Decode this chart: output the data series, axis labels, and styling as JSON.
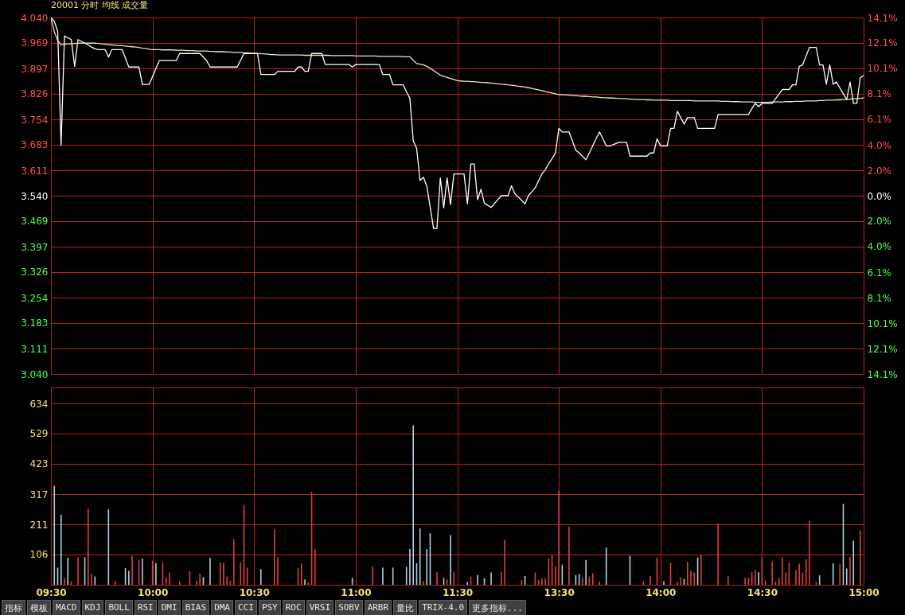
{
  "chart_data": [
    {
      "type": "line",
      "title": "20001 分时 均线 成交量",
      "grid": true,
      "categories": [
        null,
        null,
        null,
        null,
        null,
        null,
        null,
        null,
        null,
        null,
        null,
        null,
        null,
        null,
        null,
        null,
        null,
        null,
        null,
        null,
        null,
        null,
        null,
        null,
        null,
        null,
        null,
        null,
        null,
        null,
        null,
        null,
        null,
        null,
        null,
        null,
        null,
        null,
        null,
        null,
        null,
        null,
        null,
        null,
        null,
        null,
        null,
        null,
        null,
        null,
        null,
        null,
        null,
        null,
        null,
        null,
        null,
        null,
        null,
        null,
        null,
        null,
        null,
        null,
        null,
        null,
        null,
        null,
        null,
        null,
        null,
        null,
        null,
        null,
        null,
        null,
        null,
        null,
        null,
        null,
        null,
        null,
        null,
        null,
        null,
        null,
        null,
        null,
        null,
        null,
        null,
        null,
        null,
        null,
        null,
        null,
        null,
        null,
        null,
        null,
        null,
        null,
        null,
        null,
        null,
        null,
        null,
        null,
        null,
        null,
        null,
        null,
        null,
        null,
        null,
        null,
        null,
        null,
        null,
        null,
        null,
        null,
        null,
        null,
        null,
        null,
        null,
        null,
        null,
        null,
        null,
        null,
        null,
        null,
        null,
        null,
        null,
        null,
        null,
        null,
        null,
        null,
        null,
        null,
        null,
        null,
        null,
        null,
        null,
        null,
        null,
        null,
        null,
        null,
        null,
        null,
        null,
        null,
        null,
        null,
        null,
        null,
        null,
        null,
        null,
        null,
        null,
        null,
        null,
        null,
        null,
        null,
        null,
        null,
        null,
        null,
        null,
        null,
        null,
        null,
        null,
        null,
        null,
        null,
        null,
        null,
        null,
        null,
        null,
        null,
        null,
        null,
        null,
        null,
        null,
        null,
        null,
        null,
        null,
        null,
        null,
        null,
        null,
        null,
        null,
        null,
        null,
        null,
        null,
        null,
        null,
        null,
        null,
        null,
        null,
        null,
        null,
        null,
        null,
        null,
        null,
        null,
        null,
        null,
        null,
        null,
        null,
        null,
        null,
        null,
        null,
        null,
        null,
        null,
        null,
        null,
        null,
        null,
        null,
        null,
        null
      ],
      "ylim": [
        3.04,
        4.04
      ],
      "yticks": [
        {
          "value": 3.04,
          "label": "3.040"
        },
        3.111,
        3.183,
        3.254,
        3.326,
        3.397,
        3.469,
        {
          "value": 3.54,
          "label": "3.540"
        },
        3.611,
        3.683,
        3.754,
        3.826,
        3.897,
        3.969,
        {
          "value": 4.04,
          "label": "4.040"
        }
      ],
      "y2lim": [
        -14.1,
        14.1
      ],
      "y2ticks": [
        {
          "value": -14.1,
          "label": "14.1%"
        },
        {
          "value": -12.1,
          "label": "12.1%"
        },
        {
          "value": -10.1,
          "label": "10.1%"
        },
        {
          "value": -8.1,
          "label": "8.1%"
        },
        {
          "value": -6.1,
          "label": "6.1%"
        },
        {
          "value": -4,
          "label": "4.0%"
        },
        {
          "value": -2,
          "label": "2.0%"
        },
        {
          "value": 0,
          "label": "0.0%"
        },
        {
          "value": 2,
          "label": "2.0%"
        },
        {
          "value": 4,
          "label": "4.0%"
        },
        {
          "value": 6.1,
          "label": "6.1%"
        },
        {
          "value": 8.1,
          "label": "8.1%"
        },
        {
          "value": 10.1,
          "label": "10.1%"
        },
        {
          "value": 12.1,
          "label": "12.1%"
        },
        {
          "value": 14.1,
          "label": "14.1%"
        }
      ],
      "series": [
        {
          "color": "#ffffff",
          "values": [
            4.04,
            4.029,
            4.001,
            3.682,
            3.988,
            3.983,
            3.978,
            3.903,
            3.978,
            3.973,
            3.968,
            3.963,
            3.957,
            3.952,
            3.95,
            3.95,
            3.95,
            3.929,
            3.95,
            3.95,
            3.95,
            3.95,
            3.926,
            3.901,
            3.901,
            3.901,
            3.901,
            3.852,
            3.852,
            3.852,
            3.874,
            3.897,
            3.919,
            3.919,
            3.919,
            3.919,
            3.919,
            3.919,
            3.939,
            3.939,
            3.939,
            3.939,
            3.939,
            3.939,
            3.939,
            3.929,
            3.919,
            3.901,
            3.901,
            3.901,
            3.901,
            3.901,
            3.901,
            3.901,
            3.901,
            3.901,
            3.92,
            3.939,
            3.939,
            3.939,
            3.939,
            3.939,
            3.88,
            3.88,
            3.88,
            3.88,
            3.88,
            3.889,
            3.889,
            3.889,
            3.889,
            3.889,
            3.889,
            3.901,
            3.901,
            3.889,
            3.889,
            3.939,
            3.939,
            3.939,
            3.939,
            3.908,
            3.908,
            3.908,
            3.908,
            3.908,
            3.908,
            3.908,
            3.908,
            3.901,
            3.908,
            3.908,
            3.908,
            3.908,
            3.908,
            3.908,
            3.908,
            3.908,
            3.88,
            3.88,
            3.88,
            3.851,
            3.851,
            3.851,
            3.851,
            3.832,
            3.813,
            3.694,
            3.673,
            3.583,
            3.592,
            3.567,
            3.508,
            3.448,
            3.448,
            3.59,
            3.506,
            3.59,
            3.515,
            3.601,
            3.601,
            3.601,
            3.601,
            3.517,
            3.629,
            3.629,
            3.529,
            3.558,
            3.519,
            3.513,
            3.507,
            3.518,
            3.529,
            3.54,
            3.54,
            3.54,
            3.568,
            3.546,
            3.536,
            3.527,
            3.517,
            3.54,
            3.551,
            3.562,
            3.582,
            3.601,
            3.613,
            3.63,
            3.644,
            3.66,
            3.729,
            3.719,
            3.719,
            3.719,
            3.694,
            3.668,
            3.66,
            3.65,
            3.641,
            3.66,
            3.68,
            3.7,
            3.719,
            3.7,
            3.68,
            3.68,
            3.683,
            3.687,
            3.69,
            3.69,
            3.69,
            3.651,
            3.651,
            3.651,
            3.651,
            3.651,
            3.651,
            3.66,
            3.66,
            3.7,
            3.68,
            3.68,
            3.68,
            3.729,
            3.729,
            3.777,
            3.759,
            3.741,
            3.759,
            3.759,
            3.759,
            3.729,
            3.729,
            3.729,
            3.729,
            3.729,
            3.729,
            3.768,
            3.768,
            3.768,
            3.768,
            3.768,
            3.768,
            3.768,
            3.768,
            3.768,
            3.768,
            3.784,
            3.799,
            3.79,
            3.799,
            3.799,
            3.799,
            3.799,
            3.812,
            3.825,
            3.838,
            3.838,
            3.838,
            3.851,
            3.851,
            3.903,
            3.907,
            3.932,
            3.956,
            3.956,
            3.956,
            3.907,
            3.907,
            3.853,
            3.907,
            3.853,
            3.859,
            3.842,
            3.826,
            3.81,
            3.859,
            3.799,
            3.799,
            3.871,
            3.877
          ]
        },
        {
          "color": "#f0e6c0",
          "values": [
            4.04,
            4.0,
            3.975,
            3.964,
            3.965,
            3.966,
            3.966,
            3.967,
            3.968,
            3.968,
            3.968,
            3.968,
            3.968,
            3.968,
            3.967,
            3.966,
            3.965,
            3.964,
            3.963,
            3.962,
            3.961,
            3.961,
            3.96,
            3.959,
            3.958,
            3.957,
            3.956,
            3.954,
            3.953,
            3.951,
            3.95,
            3.95,
            3.95,
            3.949,
            3.949,
            3.949,
            3.949,
            3.948,
            3.948,
            3.948,
            3.947,
            3.947,
            3.947,
            3.946,
            3.946,
            3.946,
            3.946,
            3.945,
            3.945,
            3.944,
            3.944,
            3.944,
            3.943,
            3.943,
            3.942,
            3.942,
            3.942,
            3.941,
            3.941,
            3.94,
            3.94,
            3.939,
            3.938,
            3.938,
            3.937,
            3.936,
            3.936,
            3.935,
            3.935,
            3.935,
            3.935,
            3.935,
            3.935,
            3.935,
            3.935,
            3.934,
            3.934,
            3.934,
            3.934,
            3.934,
            3.934,
            3.934,
            3.934,
            3.933,
            3.933,
            3.933,
            3.933,
            3.933,
            3.933,
            3.933,
            3.932,
            3.932,
            3.932,
            3.932,
            3.932,
            3.932,
            3.932,
            3.931,
            3.931,
            3.931,
            3.931,
            3.931,
            3.931,
            3.931,
            3.93,
            3.93,
            3.93,
            3.92,
            3.911,
            3.909,
            3.907,
            3.903,
            3.898,
            3.891,
            3.885,
            3.878,
            3.875,
            3.872,
            3.869,
            3.866,
            3.863,
            3.862,
            3.861,
            3.861,
            3.86,
            3.86,
            3.859,
            3.858,
            3.858,
            3.857,
            3.856,
            3.855,
            3.854,
            3.853,
            3.852,
            3.851,
            3.85,
            3.849,
            3.847,
            3.846,
            3.845,
            3.843,
            3.841,
            3.839,
            3.837,
            3.835,
            3.832,
            3.83,
            3.828,
            3.826,
            3.824,
            3.823,
            3.823,
            3.822,
            3.821,
            3.821,
            3.82,
            3.819,
            3.819,
            3.818,
            3.817,
            3.817,
            3.816,
            3.815,
            3.815,
            3.814,
            3.814,
            3.813,
            3.813,
            3.812,
            3.812,
            3.811,
            3.811,
            3.81,
            3.81,
            3.81,
            3.809,
            3.809,
            3.808,
            3.808,
            3.808,
            3.808,
            3.808,
            3.807,
            3.807,
            3.807,
            3.807,
            3.807,
            3.807,
            3.807,
            3.806,
            3.806,
            3.806,
            3.806,
            3.806,
            3.806,
            3.806,
            3.806,
            3.805,
            3.805,
            3.805,
            3.804,
            3.804,
            3.804,
            3.803,
            3.803,
            3.803,
            3.803,
            3.802,
            3.802,
            3.802,
            3.802,
            3.802,
            3.803,
            3.803,
            3.803,
            3.803,
            3.804,
            3.804,
            3.804,
            3.805,
            3.805,
            3.805,
            3.806,
            3.806,
            3.806,
            3.806,
            3.807,
            3.807,
            3.808,
            3.808,
            3.808,
            3.809,
            3.809,
            3.81,
            3.81,
            3.811,
            3.812,
            3.812,
            3.813,
            3.814
          ]
        }
      ]
    },
    {
      "type": "bar",
      "grid": true,
      "categories": [
        "09:30",
        null,
        null,
        null,
        null,
        null,
        null,
        null,
        null,
        null,
        null,
        null,
        null,
        null,
        null,
        null,
        null,
        null,
        null,
        null,
        null,
        null,
        null,
        null,
        null,
        null,
        null,
        null,
        null,
        null,
        "10:00",
        null,
        null,
        null,
        null,
        null,
        null,
        null,
        null,
        null,
        null,
        null,
        null,
        null,
        null,
        null,
        null,
        null,
        null,
        null,
        null,
        null,
        null,
        null,
        null,
        null,
        null,
        null,
        null,
        null,
        "10:30",
        null,
        null,
        null,
        null,
        null,
        null,
        null,
        null,
        null,
        null,
        null,
        null,
        null,
        null,
        null,
        null,
        null,
        null,
        null,
        null,
        null,
        null,
        null,
        null,
        null,
        null,
        null,
        null,
        null,
        "11:00",
        null,
        null,
        null,
        null,
        null,
        null,
        null,
        null,
        null,
        null,
        null,
        null,
        null,
        null,
        null,
        null,
        null,
        null,
        null,
        null,
        null,
        null,
        null,
        null,
        null,
        null,
        null,
        null,
        null,
        "11:30",
        null,
        null,
        null,
        null,
        null,
        null,
        null,
        null,
        null,
        null,
        null,
        null,
        null,
        null,
        null,
        null,
        null,
        null,
        null,
        null,
        null,
        null,
        null,
        null,
        null,
        null,
        null,
        null,
        null,
        "13:30",
        null,
        null,
        null,
        null,
        null,
        null,
        null,
        null,
        null,
        null,
        null,
        null,
        null,
        null,
        null,
        null,
        null,
        null,
        null,
        null,
        null,
        null,
        null,
        null,
        null,
        null,
        null,
        null,
        null,
        "14:00",
        null,
        null,
        null,
        null,
        null,
        null,
        null,
        null,
        null,
        null,
        null,
        null,
        null,
        null,
        null,
        null,
        null,
        null,
        null,
        null,
        null,
        null,
        null,
        null,
        null,
        null,
        null,
        null,
        null,
        "14:30",
        null,
        null,
        null,
        null,
        null,
        null,
        null,
        null,
        null,
        null,
        null,
        null,
        null,
        null,
        null,
        null,
        null,
        null,
        null,
        null,
        null,
        null,
        null,
        null,
        null,
        null,
        null,
        null,
        null,
        "15:00"
      ],
      "ylim": [
        0,
        690
      ],
      "yticks": [
        106,
        211,
        317,
        423,
        529,
        634
      ],
      "values": [
        null,
        346,
        60,
        245,
        24,
        94,
        13,
        null,
        96,
        null,
        96,
        266,
        39,
        29,
        null,
        null,
        null,
        264,
        null,
        13,
        null,
        null,
        58,
        49,
        101,
        null,
        86,
        91,
        null,
        null,
        84,
        75,
        null,
        78,
        24,
        42,
        null,
        null,
        13,
        null,
        null,
        47,
        null,
        13,
        39,
        27,
        null,
        94,
        null,
        null,
        78,
        78,
        29,
        13,
        160,
        null,
        78,
        279,
        60,
        null,
        null,
        null,
        55,
        null,
        null,
        null,
        194,
        96,
        null,
        null,
        null,
        null,
        null,
        58,
        75,
        19,
        8,
        325,
        125,
        null,
        null,
        null,
        null,
        null,
        null,
        null,
        null,
        null,
        null,
        24,
        null,
        null,
        null,
        null,
        null,
        63,
        null,
        null,
        60,
        null,
        null,
        60,
        null,
        null,
        null,
        63,
        125,
        558,
        75,
        197,
        13,
        125,
        180,
        null,
        44,
        null,
        24,
        19,
        173,
        44,
        null,
        null,
        null,
        10,
        29,
        null,
        34,
        null,
        23,
        null,
        43,
        null,
        null,
        46,
        157,
        null,
        null,
        null,
        null,
        17,
        31,
        null,
        null,
        43,
        17,
        23,
        23,
        92,
        105,
        65,
        329,
        70,
        null,
        203,
        null,
        34,
        38,
        26,
        87,
        29,
        41,
        null,
        12,
        null,
        130,
        null,
        null,
        null,
        null,
        null,
        null,
        101,
        null,
        null,
        null,
        12,
        null,
        31,
        null,
        95,
        null,
        12,
        null,
        77,
        null,
        10,
        26,
        21,
        80,
        49,
        43,
        95,
        106,
        null,
        null,
        null,
        null,
        214,
        null,
        null,
        31,
        null,
        null,
        null,
        null,
        24,
        24,
        44,
        51,
        44,
        95,
        15,
        null,
        82,
        12,
        23,
        96,
        43,
        77,
        null,
        51,
        74,
        43,
        89,
        223,
        null,
        10,
        33,
        null,
        null,
        null,
        75,
        null,
        72,
        283,
        57,
        98,
        154,
        null,
        190,
        null
      ],
      "colors": [
        null,
        "#a8d4e4",
        "#a8d4e4",
        "#a8d4e4",
        "#e0403c",
        "#a8d4e4",
        "#e0403c",
        null,
        "#e0403c",
        null,
        "#a8d4e4",
        "#e0403c",
        "#e0403c",
        "#a8d4e4",
        null,
        null,
        null,
        "#a8d4e4",
        null,
        "#e0403c",
        null,
        null,
        "#a8d4e4",
        "#a8d4e4",
        "#e0403c",
        null,
        "#e0403c",
        "#a8d4e4",
        null,
        null,
        "#e0403c",
        "#a8d4e4",
        null,
        "#e0403c",
        "#e0403c",
        "#e0403c",
        null,
        null,
        "#e0403c",
        null,
        null,
        "#e0403c",
        null,
        "#e0403c",
        "#e0403c",
        "#a8d4e4",
        null,
        "#a8d4e4",
        null,
        null,
        "#e0403c",
        "#e0403c",
        "#e0403c",
        "#e0403c",
        "#e0403c",
        null,
        "#e0403c",
        "#e0403c",
        "#e0403c",
        null,
        null,
        null,
        "#a8d4e4",
        null,
        null,
        null,
        "#e0403c",
        "#e0403c",
        null,
        null,
        null,
        null,
        null,
        "#e0403c",
        "#e0403c",
        "#a8d4e4",
        "#e0403c",
        "#e0403c",
        "#e0403c",
        null,
        null,
        null,
        null,
        null,
        null,
        null,
        null,
        null,
        null,
        "#a8d4e4",
        null,
        null,
        null,
        null,
        null,
        "#e0403c",
        null,
        null,
        "#a8d4e4",
        null,
        null,
        "#a8d4e4",
        null,
        null,
        null,
        "#a8d4e4",
        "#a8d4e4",
        "#a8d4e4",
        "#a8d4e4",
        "#a8d4e4",
        "#e0403c",
        "#a8d4e4",
        "#a8d4e4",
        null,
        "#e0403c",
        null,
        "#a8d4e4",
        "#e0403c",
        "#a8d4e4",
        "#e0403c",
        null,
        null,
        null,
        "#a8d4e4",
        "#e0403c",
        null,
        "#a8d4e4",
        null,
        "#a8d4e4",
        null,
        "#a8d4e4",
        null,
        null,
        "#e0403c",
        "#e0403c",
        null,
        null,
        null,
        null,
        "#e0403c",
        "#a8d4e4",
        null,
        null,
        "#e0403c",
        "#e0403c",
        "#e0403c",
        "#e0403c",
        "#e0403c",
        "#e0403c",
        "#e0403c",
        "#e0403c",
        "#a8d4e4",
        null,
        "#e0403c",
        null,
        "#a8d4e4",
        "#a8d4e4",
        "#e0403c",
        "#a8d4e4",
        "#e0403c",
        "#e0403c",
        null,
        "#e0403c",
        null,
        "#a8d4e4",
        null,
        null,
        null,
        null,
        null,
        null,
        "#a8d4e4",
        null,
        null,
        null,
        "#e0403c",
        null,
        "#e0403c",
        null,
        "#e0403c",
        null,
        "#a8d4e4",
        null,
        "#e0403c",
        null,
        "#e0403c",
        "#e0403c",
        "#a8d4e4",
        "#e0403c",
        "#e0403c",
        "#e0403c",
        "#a8d4e4",
        "#e0403c",
        null,
        null,
        null,
        null,
        "#e0403c",
        null,
        null,
        "#e0403c",
        null,
        null,
        null,
        null,
        "#e0403c",
        "#e0403c",
        "#e0403c",
        "#e0403c",
        "#a8d4e4",
        "#e0403c",
        "#e0403c",
        null,
        "#e0403c",
        "#e0403c",
        "#e0403c",
        "#e0403c",
        "#e0403c",
        "#e0403c",
        null,
        "#e0403c",
        "#e0403c",
        "#e0403c",
        "#e0403c",
        "#e0403c",
        null,
        "#e0403c",
        "#a8d4e4",
        null,
        null,
        null,
        "#a8d4e4",
        null,
        "#e0403c",
        "#a8d4e4",
        "#a8d4e4",
        "#e0403c",
        "#a8d4e4",
        null,
        "#e0403c",
        null
      ],
      "annotations": [
        "指标",
        "模板",
        "MACD",
        "KDJ",
        "BOLL",
        "RSI",
        "DMI",
        "BIAS",
        "DMA",
        "CCI",
        "PSY",
        "ROC",
        "VRSI",
        "SOBV",
        "ARBR",
        "量比",
        "TRIX-4.0",
        "更多指标..."
      ]
    }
  ]
}
